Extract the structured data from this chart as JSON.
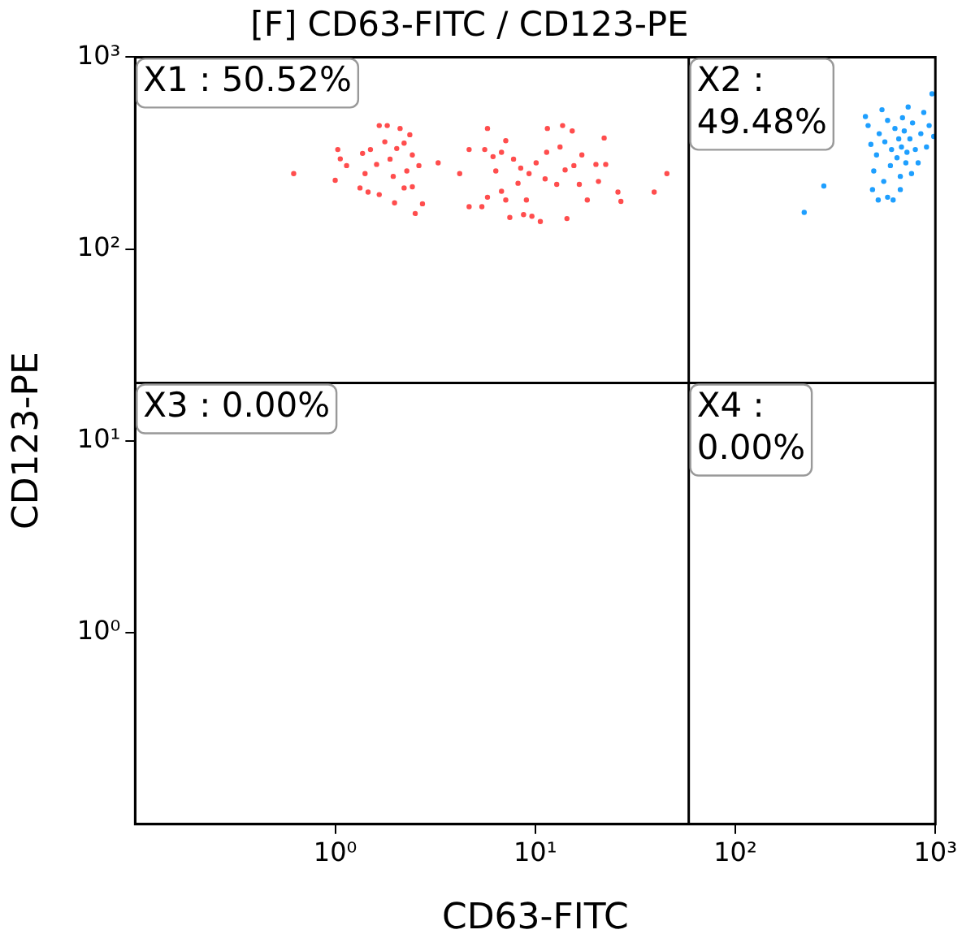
{
  "chart_data": {
    "type": "scatter",
    "title": "[F] CD63-FITC / CD123-PE",
    "xlabel": "CD63-FITC",
    "ylabel": "CD123-PE",
    "log": "xy",
    "grid": false,
    "legend": false,
    "marker": "circle",
    "xlim": [
      0.1,
      1000
    ],
    "ylim": [
      0.1,
      1000
    ],
    "xticks": [
      {
        "value": 1,
        "label": "10⁰"
      },
      {
        "value": 10,
        "label": "10¹"
      },
      {
        "value": 100,
        "label": "10²"
      },
      {
        "value": 1000,
        "label": "10³"
      }
    ],
    "yticks": [
      {
        "value": 1,
        "label": "10⁰"
      },
      {
        "value": 10,
        "label": "10¹"
      },
      {
        "value": 100,
        "label": "10²"
      },
      {
        "value": 1000,
        "label": "10³"
      }
    ],
    "ref_lines": [
      {
        "axis": "x",
        "value": 58.5,
        "color": "#000000"
      },
      {
        "axis": "y",
        "value": 20,
        "color": "#000000"
      }
    ],
    "annotations": [
      "X1 : 50.52%",
      "X2 : 49.48%",
      "X3 : 0.00%",
      "X4 : 0.00%"
    ],
    "series": [
      {
        "color": "#ff4d4d",
        "x": [
          0.62,
          1.0,
          1.03,
          1.06,
          1.14,
          1.33,
          1.37,
          1.41,
          1.46,
          1.5,
          1.61,
          1.66,
          1.66,
          1.77,
          1.82,
          1.88,
          1.95,
          1.98,
          2.03,
          2.11,
          2.21,
          2.21,
          2.28,
          2.36,
          2.43,
          2.43,
          2.51,
          2.62,
          2.73,
          3.27,
          4.19,
          4.67,
          4.67,
          5.41,
          5.59,
          5.77,
          5.77,
          6.15,
          6.35,
          6.78,
          6.78,
          7.12,
          7.12,
          7.46,
          7.79,
          8.2,
          8.46,
          8.74,
          9.03,
          9.31,
          9.62,
          10.1,
          10.6,
          11.2,
          11.4,
          11.5,
          12.8,
          13.3,
          13.7,
          14.1,
          14.4,
          15.3,
          15.6,
          16.6,
          17.1,
          18.2,
          20.1,
          20.7,
          22.1,
          22.5,
          25.9,
          26.8,
          39.3,
          45.5
        ],
        "values": [
          247,
          228,
          330,
          295,
          272,
          208,
          315,
          247,
          198,
          330,
          276,
          440,
          192,
          362,
          440,
          294,
          239,
          174,
          334,
          425,
          356,
          208,
          255,
          394,
          309,
          211,
          153,
          272,
          172,
          281,
          247,
          330,
          166,
          166,
          330,
          425,
          186,
          303,
          255,
          319,
          200,
          367,
          180,
          146,
          294,
          220,
          264,
          151,
          180,
          247,
          148,
          281,
          139,
          232,
          319,
          425,
          217,
          340,
          440,
          258,
          144,
          412,
          272,
          217,
          309,
          180,
          276,
          225,
          379,
          276,
          198,
          177,
          198,
          247
        ]
      },
      {
        "color": "#1e9fff",
        "x": [
          221,
          277,
          447,
          461,
          476,
          492,
          508,
          518,
          524,
          541,
          552,
          559,
          577,
          596,
          604,
          615,
          628,
          643,
          656,
          668,
          677,
          685,
          699,
          712,
          721,
          731,
          746,
          760,
          769,
          794,
          820,
          846,
          875,
          903,
          931,
          962,
          981,
          485,
          668,
          577
        ],
        "values": [
          155,
          213,
          490,
          440,
          351,
          255,
          309,
          180,
          399,
          532,
          225,
          362,
          468,
          272,
          330,
          180,
          425,
          299,
          375,
          239,
          340,
          483,
          412,
          281,
          319,
          550,
          375,
          247,
          454,
          330,
          281,
          399,
          515,
          340,
          440,
          644,
          386,
          204,
          204,
          186
        ]
      }
    ]
  }
}
